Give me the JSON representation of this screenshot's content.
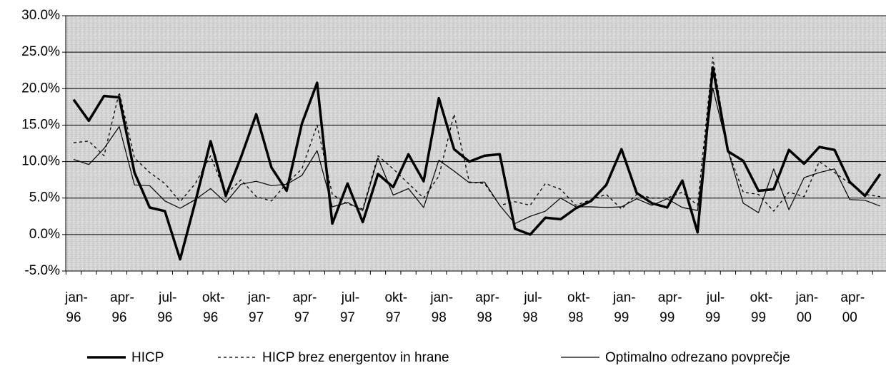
{
  "chart_data": {
    "type": "line",
    "categories": [
      "jan-96",
      null,
      null,
      "apr-96",
      null,
      null,
      "jul-96",
      null,
      null,
      "okt-96",
      null,
      null,
      "jan-97",
      null,
      null,
      "apr-97",
      null,
      null,
      "jul-97",
      null,
      null,
      "okt-97",
      null,
      null,
      "jan-98",
      null,
      null,
      "apr-98",
      null,
      null,
      "jul-98",
      null,
      null,
      "okt-98",
      null,
      null,
      "jan-99",
      null,
      null,
      "apr-99",
      null,
      null,
      "jul-99",
      null,
      null,
      "okt-99",
      null,
      null,
      "jan-00",
      null,
      null,
      "apr-00",
      null,
      null
    ],
    "series": [
      {
        "name": "HICP",
        "color": "#000000",
        "line_width": 3.5,
        "dash": "solid",
        "values": [
          18.5,
          15.6,
          19.0,
          18.8,
          8.5,
          3.7,
          3.2,
          -3.4,
          4.5,
          12.8,
          5.3,
          10.6,
          16.5,
          9.2,
          6.0,
          15.2,
          20.8,
          1.5,
          7.0,
          1.7,
          8.3,
          6.5,
          11.0,
          7.3,
          18.7,
          11.7,
          10.0,
          10.8,
          11.0,
          0.8,
          0.0,
          2.3,
          2.1,
          3.6,
          4.6,
          6.8,
          11.7,
          5.7,
          4.3,
          3.7,
          7.4,
          0.3,
          22.9,
          11.4,
          10.1,
          6.0,
          6.2,
          11.6,
          9.7,
          12.0,
          11.6,
          7.2,
          5.3,
          8.3
        ]
      },
      {
        "name": "HICP brez energentov in hrane",
        "color": "#000000",
        "line_width": 1.3,
        "dash": "dotted",
        "values": [
          12.6,
          12.8,
          10.8,
          19.5,
          10.5,
          8.5,
          7.0,
          4.5,
          7.0,
          10.8,
          5.5,
          7.5,
          5.2,
          4.6,
          7.0,
          9.0,
          15.0,
          5.5,
          4.2,
          3.5,
          10.8,
          9.0,
          7.0,
          5.0,
          8.0,
          16.5,
          7.2,
          7.0,
          4.0,
          4.5,
          4.0,
          7.0,
          6.2,
          4.0,
          4.8,
          5.5,
          3.5,
          5.5,
          5.0,
          5.0,
          5.8,
          4.0,
          24.3,
          11.5,
          5.8,
          5.5,
          3.2,
          5.8,
          5.2,
          10.0,
          8.5,
          7.0,
          5.5,
          5.2
        ]
      },
      {
        "name": "Optimalno odrezano povprečje",
        "color": "#000000",
        "line_width": 1.2,
        "dash": "solid",
        "values": [
          10.3,
          9.6,
          11.8,
          14.8,
          6.8,
          6.7,
          4.6,
          3.6,
          4.8,
          6.3,
          4.4,
          6.9,
          7.3,
          6.7,
          6.9,
          8.1,
          11.5,
          3.8,
          4.4,
          3.3,
          10.5,
          5.4,
          6.3,
          3.7,
          10.2,
          8.7,
          7.1,
          7.2,
          4.0,
          1.5,
          2.5,
          3.2,
          5.0,
          3.8,
          3.8,
          3.7,
          3.8,
          4.9,
          4.0,
          4.9,
          3.7,
          3.3,
          20.1,
          11.5,
          4.3,
          3.0,
          9.0,
          3.4,
          7.8,
          8.5,
          9.0,
          4.8,
          4.7,
          3.9
        ]
      }
    ],
    "ylim": [
      -5,
      30
    ],
    "yticks": [
      {
        "value": -5,
        "label": "-5.0%"
      },
      {
        "value": 0,
        "label": "0.0%"
      },
      {
        "value": 5,
        "label": "5.0%"
      },
      {
        "value": 10,
        "label": "10.0%"
      },
      {
        "value": 15,
        "label": "15.0%"
      },
      {
        "value": 20,
        "label": "20.0%"
      },
      {
        "value": 25,
        "label": "25.0%"
      },
      {
        "value": 30,
        "label": "30.0%"
      }
    ],
    "grid": true,
    "legend": "bottom"
  }
}
